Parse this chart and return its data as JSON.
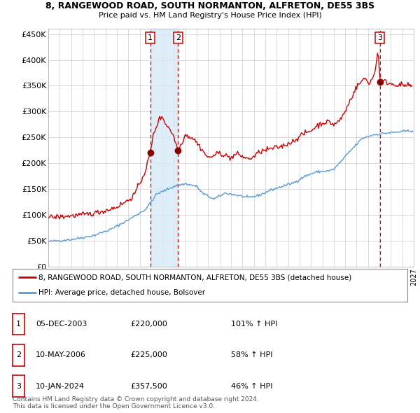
{
  "title1": "8, RANGEWOOD ROAD, SOUTH NORMANTON, ALFRETON, DE55 3BS",
  "title2": "Price paid vs. HM Land Registry's House Price Index (HPI)",
  "xlim": [
    1995.0,
    2027.0
  ],
  "ylim": [
    0,
    460000
  ],
  "yticks": [
    0,
    50000,
    100000,
    150000,
    200000,
    250000,
    300000,
    350000,
    400000,
    450000
  ],
  "ytick_labels": [
    "£0",
    "£50K",
    "£100K",
    "£150K",
    "£200K",
    "£250K",
    "£300K",
    "£350K",
    "£400K",
    "£450K"
  ],
  "sale_dates": [
    2003.92,
    2006.36,
    2024.03
  ],
  "sale_prices": [
    220000,
    225000,
    357500
  ],
  "sale_labels": [
    "1",
    "2",
    "3"
  ],
  "hpi_color": "#5b9bd5",
  "sale_color": "#cc0000",
  "legend_entries": [
    "8, RANGEWOOD ROAD, SOUTH NORMANTON, ALFRETON, DE55 3BS (detached house)",
    "HPI: Average price, detached house, Bolsover"
  ],
  "table_rows": [
    [
      "1",
      "05-DEC-2003",
      "£220,000",
      "101% ↑ HPI"
    ],
    [
      "2",
      "10-MAY-2006",
      "£225,000",
      "58% ↑ HPI"
    ],
    [
      "3",
      "10-JAN-2024",
      "£357,500",
      "46% ↑ HPI"
    ]
  ],
  "footnote": "Contains HM Land Registry data © Crown copyright and database right 2024.\nThis data is licensed under the Open Government Licence v3.0.",
  "bg_color": "#ffffff",
  "grid_color": "#cccccc"
}
